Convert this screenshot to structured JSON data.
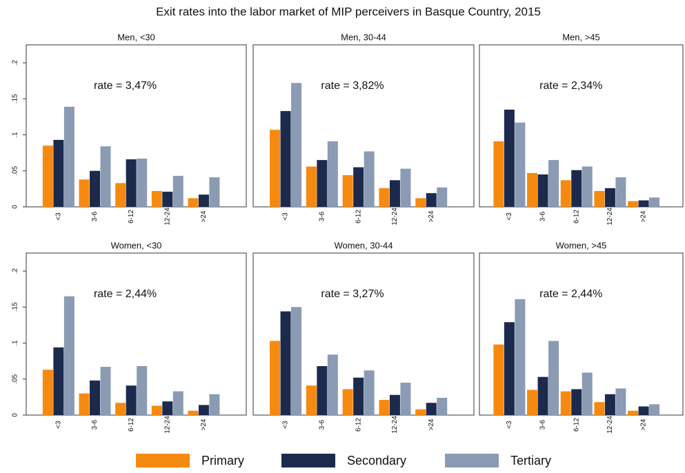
{
  "chart_data": {
    "type": "bar",
    "title": "Exit rates into the labor market of MIP perceivers in Basque Country, 2015",
    "categories": [
      "<3",
      "3-6",
      "6-12",
      "12-24",
      ">24"
    ],
    "series": [
      {
        "name": "Primary",
        "color": "#f68a10"
      },
      {
        "name": "Secondary",
        "color": "#1c2a4e"
      },
      {
        "name": "Tertiary",
        "color": "#8a9bb3"
      }
    ],
    "ylim": [
      0,
      0.225
    ],
    "yticks": [
      0,
      {
        "value": 0.05,
        "label": ".05"
      },
      {
        "value": 0.1,
        "label": ".1"
      },
      {
        "value": 0.15,
        "label": ".15"
      },
      {
        "value": 0.2,
        "label": ".2"
      }
    ],
    "panels": [
      {
        "title": "Men, <30",
        "annotation": "rate = 3,47%",
        "values": [
          [
            0.085,
            0.038,
            0.033,
            0.022,
            0.012
          ],
          [
            0.093,
            0.05,
            0.066,
            0.021,
            0.017
          ],
          [
            0.139,
            0.084,
            0.067,
            0.043,
            0.041
          ]
        ]
      },
      {
        "title": "Men, 30-44",
        "annotation": "rate = 3,82%",
        "values": [
          [
            0.107,
            0.056,
            0.044,
            0.026,
            0.012
          ],
          [
            0.133,
            0.065,
            0.055,
            0.037,
            0.019
          ],
          [
            0.172,
            0.091,
            0.077,
            0.053,
            0.027
          ]
        ]
      },
      {
        "title": "Men, >45",
        "annotation": "rate = 2,34%",
        "values": [
          [
            0.091,
            0.047,
            0.037,
            0.022,
            0.008
          ],
          [
            0.135,
            0.045,
            0.051,
            0.026,
            0.009
          ],
          [
            0.117,
            0.065,
            0.056,
            0.041,
            0.013
          ]
        ]
      },
      {
        "title": "Women, <30",
        "annotation": "rate = 2,44%",
        "values": [
          [
            0.063,
            0.03,
            0.017,
            0.013,
            0.006
          ],
          [
            0.094,
            0.048,
            0.041,
            0.019,
            0.014
          ],
          [
            0.165,
            0.067,
            0.068,
            0.033,
            0.029
          ]
        ]
      },
      {
        "title": "Women, 30-44",
        "annotation": "rate = 3,27%",
        "values": [
          [
            0.103,
            0.041,
            0.036,
            0.021,
            0.008
          ],
          [
            0.144,
            0.068,
            0.052,
            0.028,
            0.017
          ],
          [
            0.15,
            0.084,
            0.062,
            0.045,
            0.024
          ]
        ]
      },
      {
        "title": "Women, >45",
        "annotation": "rate = 2,44%",
        "values": [
          [
            0.098,
            0.035,
            0.033,
            0.018,
            0.006
          ],
          [
            0.129,
            0.053,
            0.036,
            0.029,
            0.012
          ],
          [
            0.161,
            0.103,
            0.059,
            0.037,
            0.015
          ]
        ]
      }
    ]
  }
}
